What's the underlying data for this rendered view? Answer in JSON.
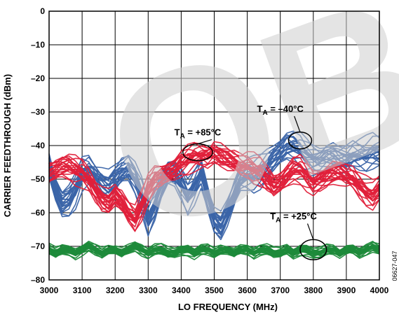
{
  "chart_data": {
    "type": "line",
    "title": "",
    "xlabel": "LO FREQUENCY (MHz)",
    "ylabel": "CARRIER FEEDTHROUGH (dBm)",
    "xlim": [
      3000,
      4000
    ],
    "ylim": [
      -80,
      0
    ],
    "x_ticks": [
      "3000",
      "3100",
      "3200",
      "3300",
      "3400",
      "3500",
      "3600",
      "3700",
      "3800",
      "3900",
      "4000"
    ],
    "y_ticks": [
      "0",
      "–10",
      "–20",
      "–30",
      "–40",
      "–50",
      "–60",
      "–70",
      "–80"
    ],
    "grid": true,
    "figure_id": "06627-047",
    "watermark": "OBS",
    "annotations": [
      {
        "label_main": "T",
        "label_sub": "A",
        "label_rest": " = +85°C",
        "x": 3450,
        "y": -37,
        "ellipse_center": [
          3450,
          -42
        ],
        "ellipse_radii_data": [
          45,
          2.5
        ]
      },
      {
        "label_main": "T",
        "label_sub": "A",
        "label_rest": " = –40°C",
        "x": 3700,
        "y": -30,
        "ellipse_center": [
          3760,
          -38.5
        ],
        "ellipse_radii_data": [
          35,
          2.5
        ]
      },
      {
        "label_main": "T",
        "label_sub": "A",
        "label_rest": " = +25°C",
        "x": 3740,
        "y": -62,
        "ellipse_center": [
          3800,
          -71
        ],
        "ellipse_radii_data": [
          40,
          3
        ]
      }
    ],
    "series": [
      {
        "color": "#3a64a8",
        "count": 22,
        "x": [
          3000,
          3020,
          3040,
          3060,
          3080,
          3100,
          3120,
          3140,
          3160,
          3180,
          3200,
          3220,
          3240,
          3260,
          3280,
          3300,
          3320,
          3340,
          3360,
          3380,
          3400,
          3420,
          3440,
          3460,
          3480,
          3500,
          3520,
          3540,
          3560,
          3580,
          3600,
          3620,
          3640,
          3660,
          3680,
          3700,
          3720,
          3740,
          3760,
          3780,
          3800,
          3820,
          3840,
          3860,
          3880,
          3900,
          3920,
          3940,
          3960,
          3980,
          4000
        ],
        "y": [
          -46,
          -53,
          -57,
          -56,
          -53,
          -48,
          -47,
          -49,
          -51,
          -52,
          -50,
          -48,
          -47,
          -50,
          -55,
          -62,
          -58,
          -52,
          -48,
          -48,
          -51,
          -55,
          -52,
          -48,
          -55,
          -62,
          -64,
          -60,
          -55,
          -50,
          -49,
          -49,
          -48,
          -46,
          -44,
          -42,
          -40,
          -40,
          -41,
          -43,
          -44,
          -44,
          -43,
          -43,
          -44,
          -44,
          -43,
          -43,
          -43,
          -42,
          -42
        ],
        "spread": 5
      },
      {
        "color": "#e0203a",
        "count": 22,
        "x": [
          3000,
          3020,
          3040,
          3060,
          3080,
          3100,
          3120,
          3140,
          3160,
          3180,
          3200,
          3220,
          3240,
          3260,
          3280,
          3300,
          3320,
          3340,
          3360,
          3380,
          3400,
          3420,
          3440,
          3460,
          3480,
          3500,
          3520,
          3540,
          3560,
          3580,
          3600,
          3620,
          3640,
          3660,
          3680,
          3700,
          3720,
          3740,
          3760,
          3780,
          3800,
          3820,
          3840,
          3860,
          3880,
          3900,
          3920,
          3940,
          3960,
          3980,
          4000
        ],
        "y": [
          -48,
          -47,
          -46,
          -46,
          -47,
          -48,
          -50,
          -53,
          -56,
          -57,
          -55,
          -57,
          -60,
          -62,
          -58,
          -53,
          -50,
          -49,
          -48,
          -47,
          -45,
          -44,
          -43,
          -43,
          -43,
          -42,
          -43,
          -44,
          -45,
          -46,
          -46,
          -47,
          -48,
          -50,
          -52,
          -51,
          -49,
          -47,
          -47,
          -49,
          -51,
          -50,
          -49,
          -48,
          -48,
          -49,
          -50,
          -52,
          -54,
          -55,
          -53
        ],
        "spread": 4
      },
      {
        "color": "#1e8a3a",
        "count": 26,
        "x": [
          3000,
          3020,
          3040,
          3060,
          3080,
          3100,
          3120,
          3140,
          3160,
          3180,
          3200,
          3220,
          3240,
          3260,
          3280,
          3300,
          3320,
          3340,
          3360,
          3380,
          3400,
          3420,
          3440,
          3460,
          3480,
          3500,
          3520,
          3540,
          3560,
          3580,
          3600,
          3620,
          3640,
          3660,
          3680,
          3700,
          3720,
          3740,
          3760,
          3780,
          3800,
          3820,
          3840,
          3860,
          3880,
          3900,
          3920,
          3940,
          3960,
          3980,
          4000
        ],
        "y": [
          -71,
          -72,
          -71,
          -71,
          -72,
          -71,
          -70,
          -71,
          -72,
          -71,
          -71,
          -72,
          -71,
          -70,
          -71,
          -72,
          -71,
          -71,
          -72,
          -72,
          -71,
          -71,
          -72,
          -71,
          -71,
          -72,
          -71,
          -71,
          -72,
          -71,
          -71,
          -72,
          -71,
          -71,
          -72,
          -72,
          -71,
          -72,
          -71,
          -71,
          -72,
          -72,
          -71,
          -71,
          -72,
          -71,
          -71,
          -72,
          -71,
          -70,
          -71
        ],
        "spread": 1.6
      }
    ]
  }
}
